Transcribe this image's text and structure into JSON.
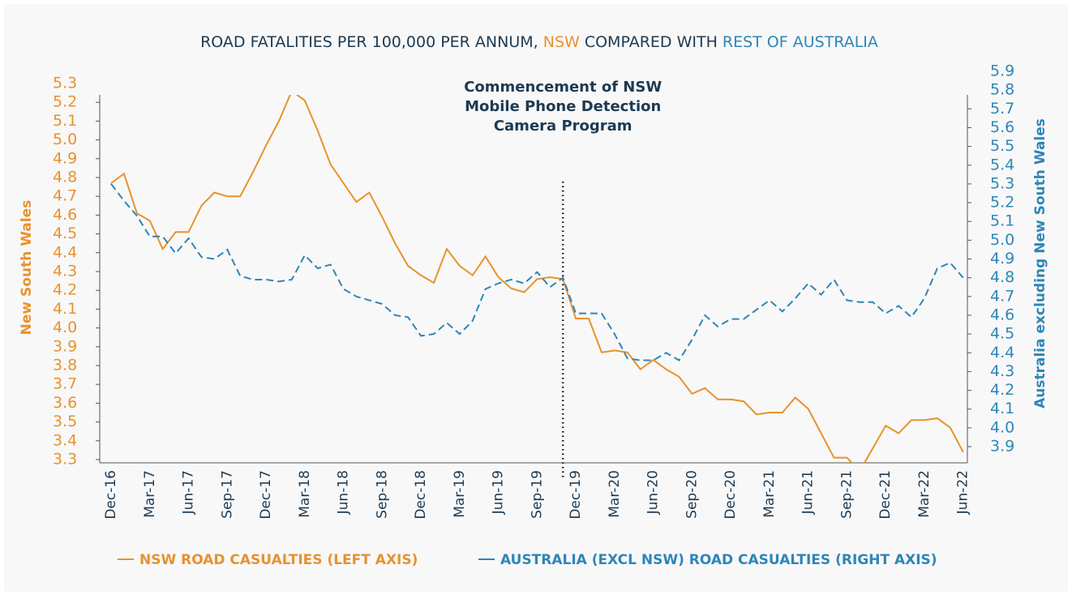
{
  "chart_data": {
    "type": "line",
    "title": [
      "ROAD FATALITIES PER 100,000 PER ANNUM, ",
      "NSW",
      " COMPARED WITH ",
      "REST OF AUSTRALIA"
    ],
    "title_colors": [
      "#1d3a52",
      "#e8922e",
      "#1d3a52",
      "#2e86b8"
    ],
    "annotation": {
      "text": [
        "Commencement of NSW",
        "Mobile Phone Detection",
        "Camera Program"
      ],
      "x": 35
    },
    "ylabel": "New South Wales",
    "y2label": "Australia excluding New South Wales",
    "categories": [
      "Dec-16",
      null,
      null,
      "Mar-17",
      null,
      null,
      "Jun-17",
      null,
      null,
      "Sep-17",
      null,
      null,
      "Dec-17",
      null,
      null,
      "Mar-18",
      null,
      null,
      "Jun-18",
      null,
      null,
      "Sep-18",
      null,
      null,
      "Dec-18",
      null,
      null,
      "Mar-19",
      null,
      null,
      "Jun-19",
      null,
      null,
      "Sep-19",
      null,
      null,
      "Dec-19",
      null,
      null,
      "Mar-20",
      null,
      null,
      "Jun-20",
      null,
      null,
      "Sep-20",
      null,
      null,
      "Dec-20",
      null,
      null,
      "Mar-21",
      null,
      null,
      "Jun-21",
      null,
      null,
      "Sep-21",
      null,
      null,
      "Dec-21",
      null,
      null,
      "Mar-22",
      null,
      null,
      "Jun-22"
    ],
    "series": [
      {
        "name": "NSW ROAD CASUALTIES (LEFT AXIS)",
        "color": "#e8922e",
        "axis": "y",
        "values": [
          4.77,
          4.82,
          4.61,
          4.57,
          4.42,
          4.51,
          4.51,
          4.65,
          4.72,
          4.7,
          4.7,
          4.83,
          4.97,
          5.1,
          5.26,
          5.21,
          5.05,
          4.87,
          4.77,
          4.67,
          4.72,
          4.59,
          4.45,
          4.33,
          4.28,
          4.24,
          4.42,
          4.33,
          4.28,
          4.38,
          4.27,
          4.21,
          4.19,
          4.26,
          4.27,
          4.26,
          4.05,
          4.05,
          3.87,
          3.88,
          3.87,
          3.78,
          3.83,
          3.78,
          3.74,
          3.65,
          3.68,
          3.62,
          3.62,
          3.61,
          3.54,
          3.55,
          3.55,
          3.63,
          3.57,
          3.44,
          3.31,
          3.31,
          3.24,
          3.36,
          3.48,
          3.44,
          3.51,
          3.51,
          3.52,
          3.47,
          3.34
        ]
      },
      {
        "name": "AUSTRALIA (EXCL NSW) ROAD CASUALTIES (RIGHT AXIS)",
        "color": "#2e86b8",
        "axis": "y2",
        "values": [
          5.3,
          5.21,
          5.13,
          5.02,
          5.02,
          4.93,
          5.01,
          4.91,
          4.9,
          4.95,
          4.81,
          4.79,
          4.79,
          4.78,
          4.79,
          4.92,
          4.85,
          4.87,
          4.74,
          4.7,
          4.68,
          4.66,
          4.6,
          4.59,
          4.49,
          4.5,
          4.56,
          4.5,
          4.57,
          4.74,
          4.77,
          4.79,
          4.77,
          4.83,
          4.75,
          4.8,
          4.61,
          4.61,
          4.61,
          4.5,
          4.37,
          4.36,
          4.36,
          4.4,
          4.36,
          4.47,
          4.6,
          4.54,
          4.58,
          4.58,
          4.63,
          4.68,
          4.62,
          4.69,
          4.77,
          4.71,
          4.79,
          4.68,
          4.67,
          4.67,
          4.61,
          4.65,
          4.59,
          4.69,
          4.85,
          4.88,
          4.8
        ]
      }
    ],
    "ylim": [
      3.3,
      5.3
    ],
    "yticks": [
      3.3,
      3.4,
      3.5,
      3.6,
      3.7,
      3.8,
      3.9,
      {
        "value": 4,
        "label": "4.0"
      },
      4.1,
      4.2,
      4.3,
      4.4,
      4.5,
      4.6,
      4.7,
      4.8,
      4.9,
      {
        "value": 5,
        "label": "5.0"
      },
      5.1,
      5.2,
      5.3
    ],
    "y2lim": [
      3.9,
      5.9
    ],
    "y2ticks": [
      3.9,
      {
        "value": 4,
        "label": "4.0"
      },
      4.1,
      4.2,
      4.3,
      4.4,
      4.5,
      4.6,
      4.7,
      4.8,
      4.9,
      {
        "value": 5,
        "label": "5.0"
      },
      5.1,
      5.2,
      5.3,
      5.4,
      5.5,
      5.6,
      5.7,
      5.8,
      5.9
    ],
    "grid": false
  }
}
